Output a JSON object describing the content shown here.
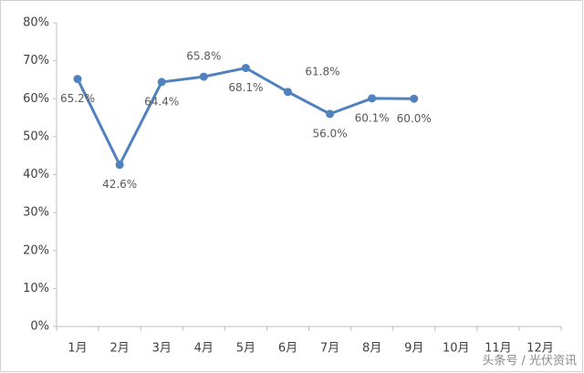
{
  "chart_data": {
    "type": "line",
    "categories": [
      "1月",
      "2月",
      "3月",
      "4月",
      "5月",
      "6月",
      "7月",
      "8月",
      "9月",
      "10月",
      "11月",
      "12月"
    ],
    "series": [
      {
        "name": null,
        "color": "#4f81bd",
        "values": [
          65.2,
          42.6,
          64.4,
          65.8,
          68.1,
          61.8,
          56.0,
          60.1,
          60.0,
          null,
          null,
          null
        ],
        "value_labels": [
          "65.2%",
          "42.6%",
          "64.4%",
          "65.8%",
          "68.1%",
          "61.8%",
          "56.0%",
          "60.1%",
          "60.0%",
          null,
          null,
          null
        ]
      }
    ],
    "ylim": [
      0,
      80
    ],
    "yticks": [
      {
        "value": 0,
        "label": "0%"
      },
      {
        "value": 10,
        "label": "10%"
      },
      {
        "value": 20,
        "label": "20%"
      },
      {
        "value": 30,
        "label": "30%"
      },
      {
        "value": 40,
        "label": "40%"
      },
      {
        "value": 50,
        "label": "50%"
      },
      {
        "value": 60,
        "label": "60%"
      },
      {
        "value": 70,
        "label": "70%"
      },
      {
        "value": 80,
        "label": "80%"
      }
    ],
    "grid": false,
    "watermark": "头条号 / 光伏资讯"
  }
}
